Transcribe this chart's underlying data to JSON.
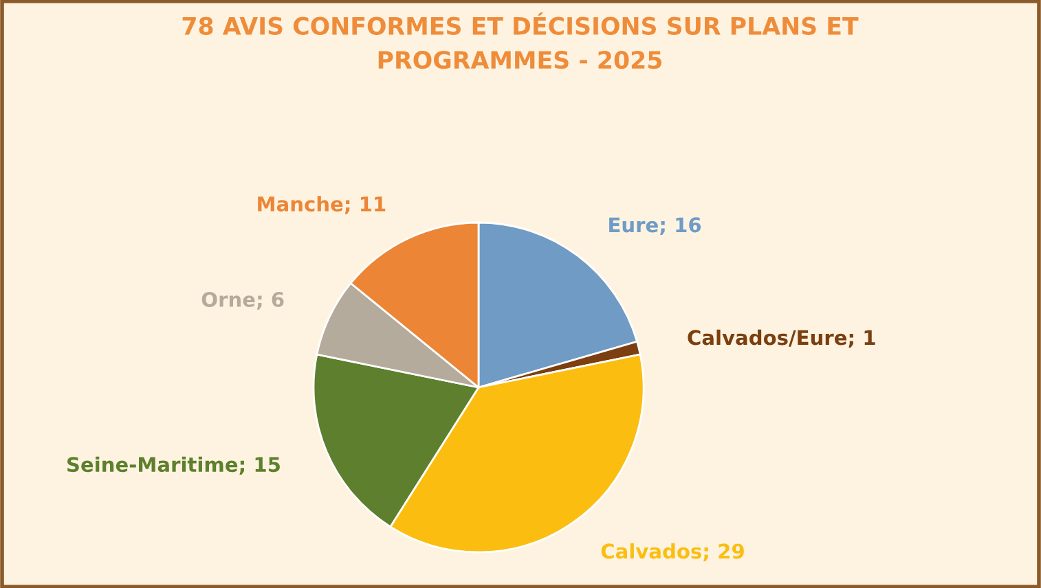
{
  "chart_data": {
    "type": "pie",
    "title": "78 AVIS CONFORMES ET DÉCISIONS SUR PLANS ET\nPROGRAMMES - 2025",
    "categories": [
      "Eure; 16",
      "Calvados/Eure; 1",
      "Calvados; 29",
      "Seine-Maritime; 15",
      "Orne; 6",
      "Manche; 11"
    ],
    "values": [
      16,
      1,
      29,
      15,
      6,
      11
    ],
    "colors": [
      "#6f9bc4",
      "#7b3f10",
      "#fbbd10",
      "#5e7f2d",
      "#b5ab9c",
      "#ec8536"
    ]
  }
}
